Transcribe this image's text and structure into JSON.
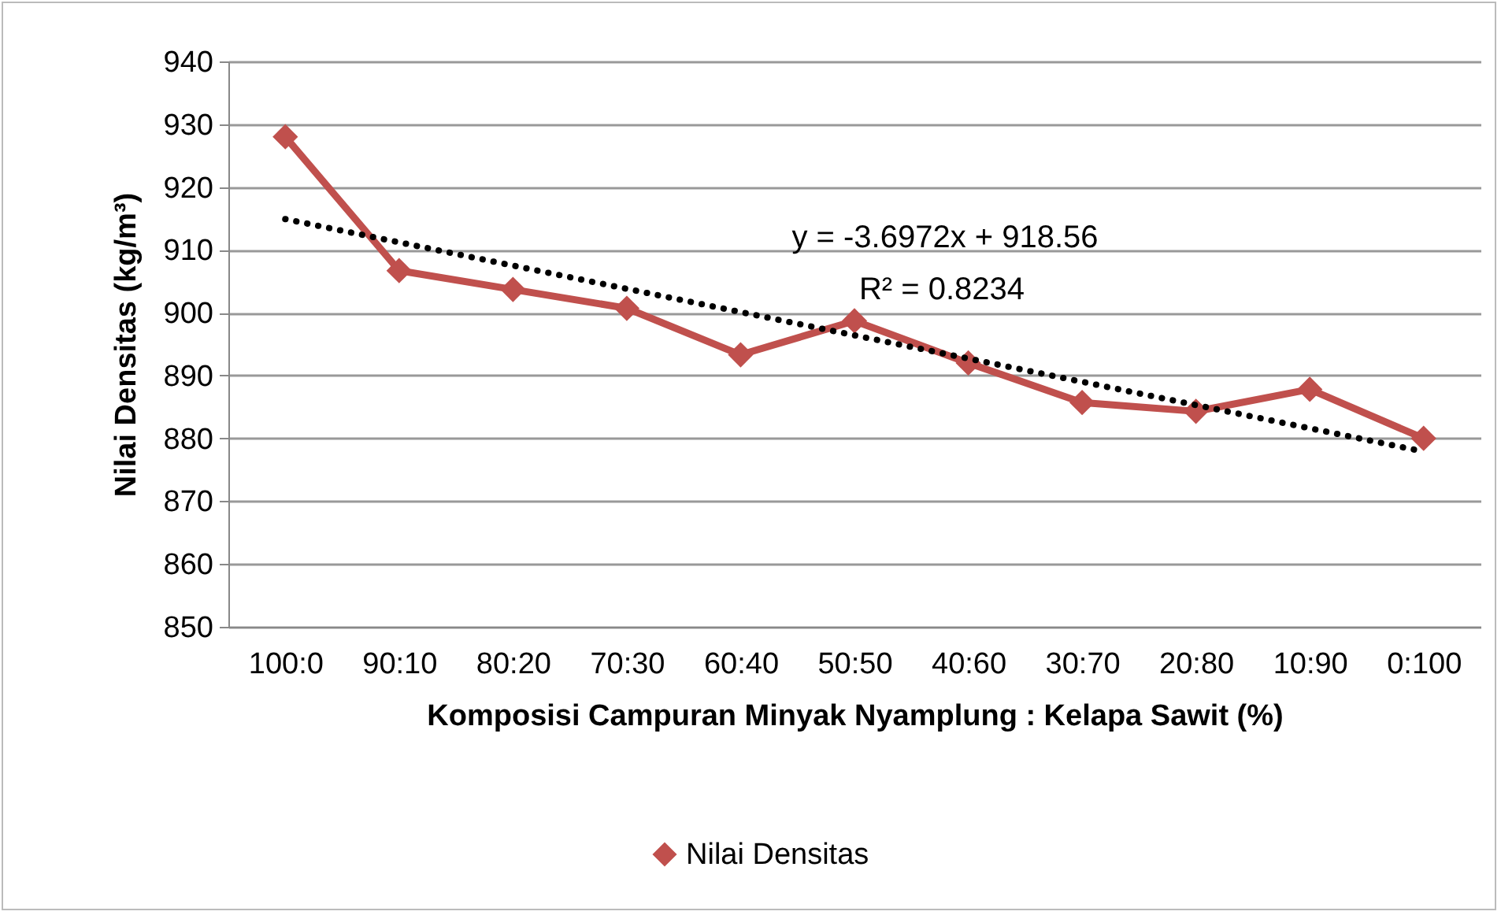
{
  "chart_data": {
    "type": "line",
    "xlabel": "Komposisi Campuran Minyak Nyamplung :  Kelapa Sawit (%)",
    "ylabel": "Nilai Densitas (kg/m³)",
    "categories": [
      "100:0",
      "90:10",
      "80:20",
      "70:30",
      "60:40",
      "50:50",
      "40:60",
      "30:70",
      "20:80",
      "10:90",
      "0:100"
    ],
    "series": [
      {
        "name": "Nilai Densitas",
        "color": "#c0504d",
        "marker": "diamond",
        "line_style": "solid",
        "values": [
          928,
          906.7,
          903.7,
          900.7,
          893.3,
          898.7,
          892,
          885.7,
          884.3,
          887.8,
          880
        ]
      },
      {
        "type": "line",
        "color": "#000000",
        "marker": "none",
        "line_style": "dotted",
        "x": [
          "100:0",
          "90:10",
          "80:20",
          "70:30",
          "60:40",
          "50:50",
          "40:60",
          "30:70",
          "20:80",
          "10:90",
          "0:100"
        ],
        "values": [
          914.9,
          911.2,
          907.5,
          903.8,
          900.1,
          896.4,
          892.7,
          889.0,
          885.3,
          881.6,
          877.9
        ]
      }
    ],
    "ylim": [
      850,
      940
    ],
    "yticks": [
      850,
      860,
      870,
      880,
      890,
      900,
      910,
      920,
      930,
      940
    ],
    "grid": "y",
    "legend": "bottom",
    "annotations": [
      "y = -3.6972x + 918.56",
      "R² = 0.8234"
    ]
  }
}
